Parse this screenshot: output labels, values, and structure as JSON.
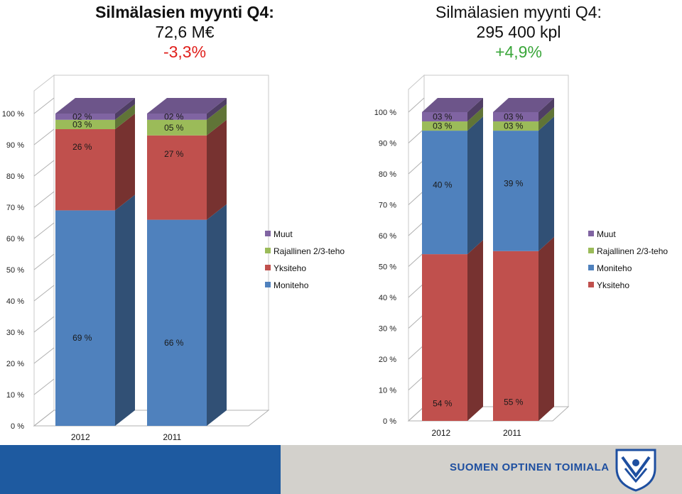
{
  "headers": [
    {
      "title": "Silmälasien myynti Q4:",
      "value": "72,6 M€",
      "change": "-3,3%",
      "change_color": "#e0201c"
    },
    {
      "title": "Silmälasien myynti Q4:",
      "value": "295 400 kpl",
      "change": "+4,9%",
      "change_color": "#3aa63a"
    }
  ],
  "colors": {
    "Moniteho": "#4f81bd",
    "Yksiteho": "#c0504d",
    "Rajallinen 2/3-teho": "#9bbb59",
    "Muut": "#8064a2"
  },
  "chart_data": [
    {
      "type": "bar",
      "stacked": true,
      "categories": [
        "2012",
        "2011"
      ],
      "series": [
        {
          "name": "Moniteho",
          "values": [
            69,
            66
          ],
          "labels": [
            "69 %",
            "66 %"
          ]
        },
        {
          "name": "Yksiteho",
          "values": [
            26,
            27
          ],
          "labels": [
            "26 %",
            "27 %"
          ]
        },
        {
          "name": "Rajallinen 2/3-teho",
          "values": [
            3,
            5
          ],
          "labels": [
            "03 %",
            "05 %"
          ]
        },
        {
          "name": "Muut",
          "values": [
            2,
            2
          ],
          "labels": [
            "02 %",
            "02 %"
          ]
        }
      ],
      "legend": [
        "Muut",
        "Rajallinen 2/3-teho",
        "Yksiteho",
        "Moniteho"
      ],
      "yticks": [
        "0 %",
        "10 %",
        "20 %",
        "30 %",
        "40 %",
        "50 %",
        "60 %",
        "70 %",
        "80 %",
        "90 %",
        "100 %"
      ],
      "ylim": [
        0,
        100
      ]
    },
    {
      "type": "bar",
      "stacked": true,
      "categories": [
        "2012",
        "2011"
      ],
      "series": [
        {
          "name": "Yksiteho",
          "values": [
            54,
            55
          ],
          "labels": [
            "54 %",
            "55 %"
          ]
        },
        {
          "name": "Moniteho",
          "values": [
            40,
            39
          ],
          "labels": [
            "40 %",
            "39 %"
          ]
        },
        {
          "name": "Rajallinen 2/3-teho",
          "values": [
            3,
            3
          ],
          "labels": [
            "03 %",
            "03 %"
          ]
        },
        {
          "name": "Muut",
          "values": [
            3,
            3
          ],
          "labels": [
            "03 %",
            "03 %"
          ]
        }
      ],
      "legend": [
        "Muut",
        "Rajallinen 2/3-teho",
        "Moniteho",
        "Yksiteho"
      ],
      "yticks": [
        "0 %",
        "10 %",
        "20 %",
        "30 %",
        "40 %",
        "50 %",
        "60 %",
        "70 %",
        "80 %",
        "90 %",
        "100 %"
      ],
      "ylim": [
        0,
        100
      ]
    }
  ],
  "footer": {
    "brand": "SUOMEN OPTINEN TOIMIALA"
  }
}
